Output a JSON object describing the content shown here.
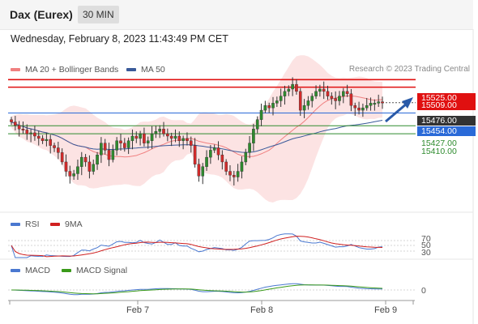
{
  "header": {
    "title": "Dax (Eurex)",
    "timeframe": "30 MIN"
  },
  "datetime": "Wednesday, February 8, 2023 11:43:49 PM CET",
  "legend": [
    {
      "label": "MA 20 + Bollinger Bands",
      "color": "#f08080"
    },
    {
      "label": "MA 50",
      "color": "#3a5a9a"
    }
  ],
  "credit": "Research © 2023 Trading Central",
  "price_labels": [
    {
      "value": "15525.00",
      "color": "#e01010"
    },
    {
      "value": "15509.00",
      "color": "#e01010"
    },
    {
      "value": "15476.00",
      "color": "#333333"
    },
    {
      "value": "15454.00",
      "color": "#2a6ad8"
    }
  ],
  "green_labels": [
    "15427.00",
    "15410.00"
  ],
  "rsi_legend": [
    {
      "label": "RSI",
      "color": "#4a78d0"
    },
    {
      "label": "9MA",
      "color": "#d02020"
    }
  ],
  "rsi_levels": [
    "70",
    "50",
    "30"
  ],
  "macd_legend": [
    {
      "label": "MACD",
      "color": "#4a78d0"
    },
    {
      "label": "MACD Signal",
      "color": "#3a9a1a"
    }
  ],
  "macd_level": "0",
  "x_labels": [
    "Feb 7",
    "Feb 8",
    "Feb 9"
  ],
  "chart_data": {
    "type": "candlestick",
    "horizontal_lines": [
      {
        "value": 15525,
        "color": "#e01010",
        "label": "15525.00"
      },
      {
        "value": 15509,
        "color": "#e01010",
        "label": "15509.00"
      },
      {
        "value": 15454,
        "color": "#2a6ad8",
        "label": "15454.00"
      },
      {
        "value": 15427,
        "color": "#2e8b2e",
        "label": "15427.00"
      },
      {
        "value": 15410,
        "color": "#2e8b2e",
        "label": "15410.00"
      }
    ],
    "last_price": 15476,
    "x_ticks": [
      "Feb 7",
      "Feb 8",
      "Feb 9"
    ],
    "closes": [
      15435,
      15428,
      15420,
      15418,
      15410,
      15412,
      15405,
      15400,
      15395,
      15398,
      15385,
      15380,
      15370,
      15350,
      15330,
      15320,
      15325,
      15340,
      15360,
      15350,
      15330,
      15345,
      15365,
      15390,
      15375,
      15355,
      15375,
      15395,
      15390,
      15380,
      15395,
      15405,
      15400,
      15410,
      15390,
      15395,
      15410,
      15415,
      15420,
      15410,
      15405,
      15400,
      15405,
      15395,
      15400,
      15395,
      15385,
      15345,
      15320,
      15340,
      15360,
      15375,
      15380,
      15365,
      15350,
      15330,
      15322,
      15318,
      15330,
      15350,
      15370,
      15390,
      15420,
      15440,
      15460,
      15470,
      15465,
      15475,
      15480,
      15490,
      15500,
      15505,
      15515,
      15500,
      15460,
      15470,
      15480,
      15490,
      15500,
      15505,
      15500,
      15490,
      15485,
      15480,
      15490,
      15500,
      15495,
      15470,
      15465,
      15460,
      15465,
      15470,
      15475,
      15475,
      15478,
      15476
    ],
    "rsi_levels": [
      70,
      50,
      30
    ],
    "macd_level": 0
  }
}
